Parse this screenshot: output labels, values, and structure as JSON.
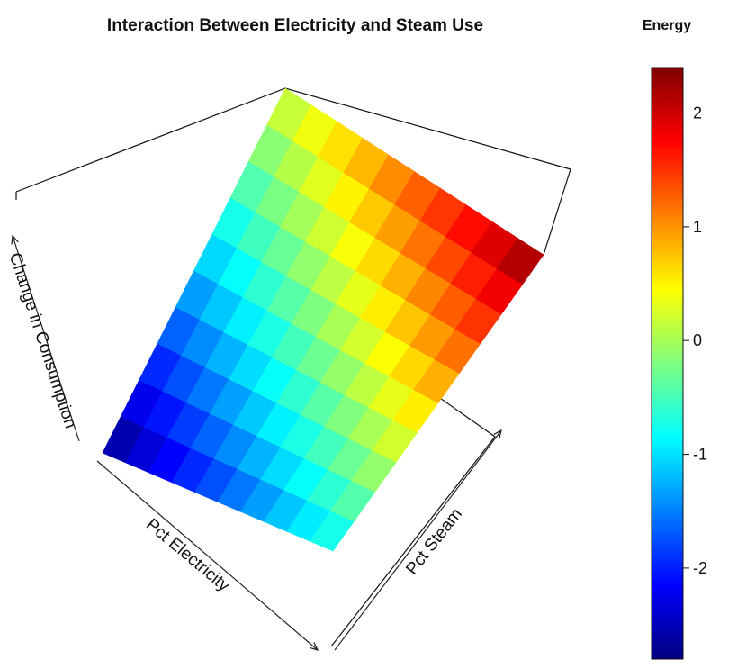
{
  "chart_data": {
    "type": "surface3d",
    "title": "Interaction Between Electricity and Steam Use",
    "xlabel": "Pct Electricity",
    "ylabel": "Pct Steam",
    "zlabel": "Change in Consumption",
    "legend": {
      "title": "Energy",
      "position": "right",
      "ticks": [
        2,
        1,
        0,
        -1,
        -2
      ],
      "range": [
        -2.8,
        2.4
      ]
    },
    "grid": {
      "rows": 10,
      "cols": 10
    },
    "corner_values": {
      "low_electricity_low_steam": -2.8,
      "low_electricity_high_steam": 0.2,
      "high_electricity_low_steam": -0.8,
      "high_electricity_high_steam": 2.4
    },
    "colormap": [
      "#00007F",
      "#0000FF",
      "#007FFF",
      "#00FFFF",
      "#7FFF7F",
      "#FFFF00",
      "#FF7F00",
      "#FF0000",
      "#7F0000"
    ]
  }
}
